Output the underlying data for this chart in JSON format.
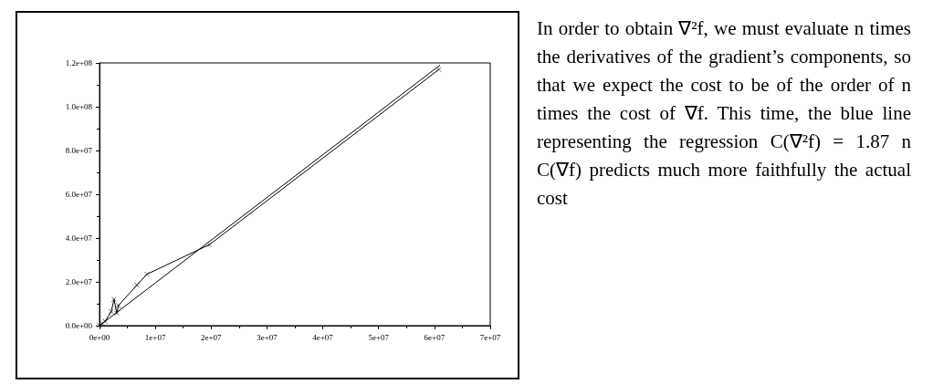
{
  "chart_data": {
    "type": "line",
    "marker": "cross",
    "grid": false,
    "xlim": [
      0,
      70000000
    ],
    "ylim": [
      0,
      120000000
    ],
    "xticks": [
      {
        "value": 0,
        "label": "0e+00"
      },
      {
        "value": 10000000,
        "label": "1e+07"
      },
      {
        "value": 20000000,
        "label": "2e+07"
      },
      {
        "value": 30000000,
        "label": "3e+07"
      },
      {
        "value": 40000000,
        "label": "4e+07"
      },
      {
        "value": 50000000,
        "label": "5e+07"
      },
      {
        "value": 60000000,
        "label": "6e+07"
      },
      {
        "value": 70000000,
        "label": "7e+07"
      }
    ],
    "yticks": [
      {
        "value": 0,
        "label": "0.0e+00"
      },
      {
        "value": 20000000,
        "label": "2.0e+07"
      },
      {
        "value": 40000000,
        "label": "4.0e+07"
      },
      {
        "value": 60000000,
        "label": "6.0e+07"
      },
      {
        "value": 80000000,
        "label": "8.0e+07"
      },
      {
        "value": 100000000,
        "label": "1.0e+08"
      },
      {
        "value": 120000000,
        "label": "1.2e+08"
      }
    ],
    "series": [
      {
        "color": "#000000",
        "x": [
          0,
          500000,
          1000000,
          2100000,
          2600000,
          3100000,
          3400000,
          6700000,
          8500000,
          19700000,
          60800000
        ],
        "values": [
          0,
          1000000,
          2000000,
          6400000,
          12000000,
          5700000,
          9200000,
          18500000,
          23500000,
          37000000,
          117000000
        ]
      },
      {
        "color": "#000000",
        "marker": "none",
        "x": [
          0,
          61000000
        ],
        "values": [
          0,
          119000000
        ]
      }
    ],
    "annotations": [
      "In order to obtain ∇²f, we must evaluate n times the derivatives of the gradient’s components, so that we expect the cost to be of the order of n times the cost of ∇f. This time, the blue line representing the regression C(∇²f) = 1.87 n C(∇f) predicts much more faithfully the actual cost"
    ]
  }
}
